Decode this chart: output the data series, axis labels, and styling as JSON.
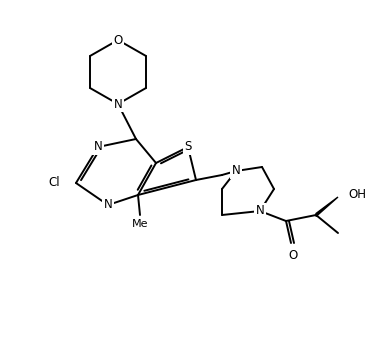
{
  "bg": "#ffffff",
  "bond_color": "#000000",
  "figsize": [
    3.78,
    3.5
  ],
  "dpi": 100,
  "atoms": {
    "S_label": "S",
    "N_morph_label": "N",
    "O_morph_label": "O",
    "N_pyr_top_label": "N",
    "N_pyr_bot_label": "N",
    "Cl_label": "Cl",
    "OH_label": "OH",
    "O_carbonyl_label": "O",
    "N_pyrim1_label": "N",
    "N_pyrim2_label": "N",
    "Me_label": "Me"
  },
  "font_size": 8.5,
  "lw": 1.4
}
